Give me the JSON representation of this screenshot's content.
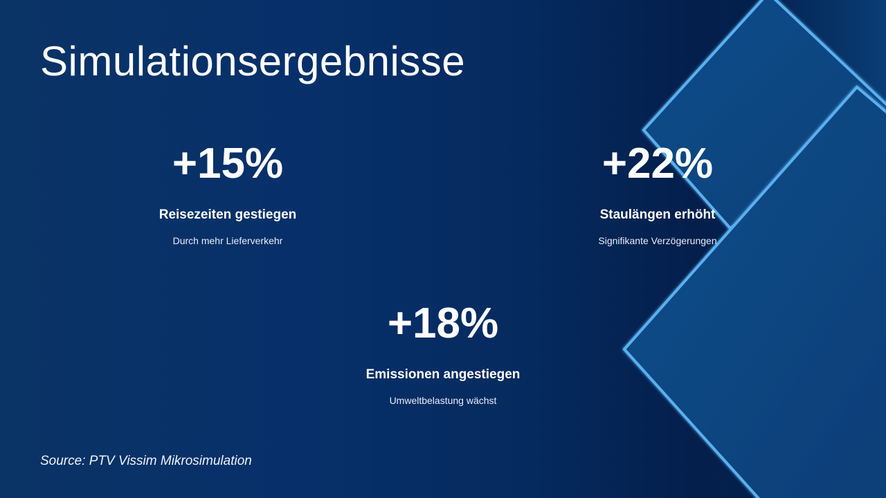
{
  "slide": {
    "title": "Simulationsergebnisse",
    "stats": [
      {
        "value": "+15%",
        "heading": "Reisezeiten gestiegen",
        "description": "Durch mehr Lieferverkehr"
      },
      {
        "value": "+22%",
        "heading": "Staulängen erhöht",
        "description": "Signifikante Verzögerungen"
      },
      {
        "value": "+18%",
        "heading": "Emissionen angestiegen",
        "description": "Umweltbelastung wächst"
      }
    ],
    "source": "Source: PTV Vissim Mikrosimulation"
  },
  "colors": {
    "background": "#0a3366",
    "accent_outline": "#5ab0ee",
    "shape_fill": "#0a4a85"
  }
}
